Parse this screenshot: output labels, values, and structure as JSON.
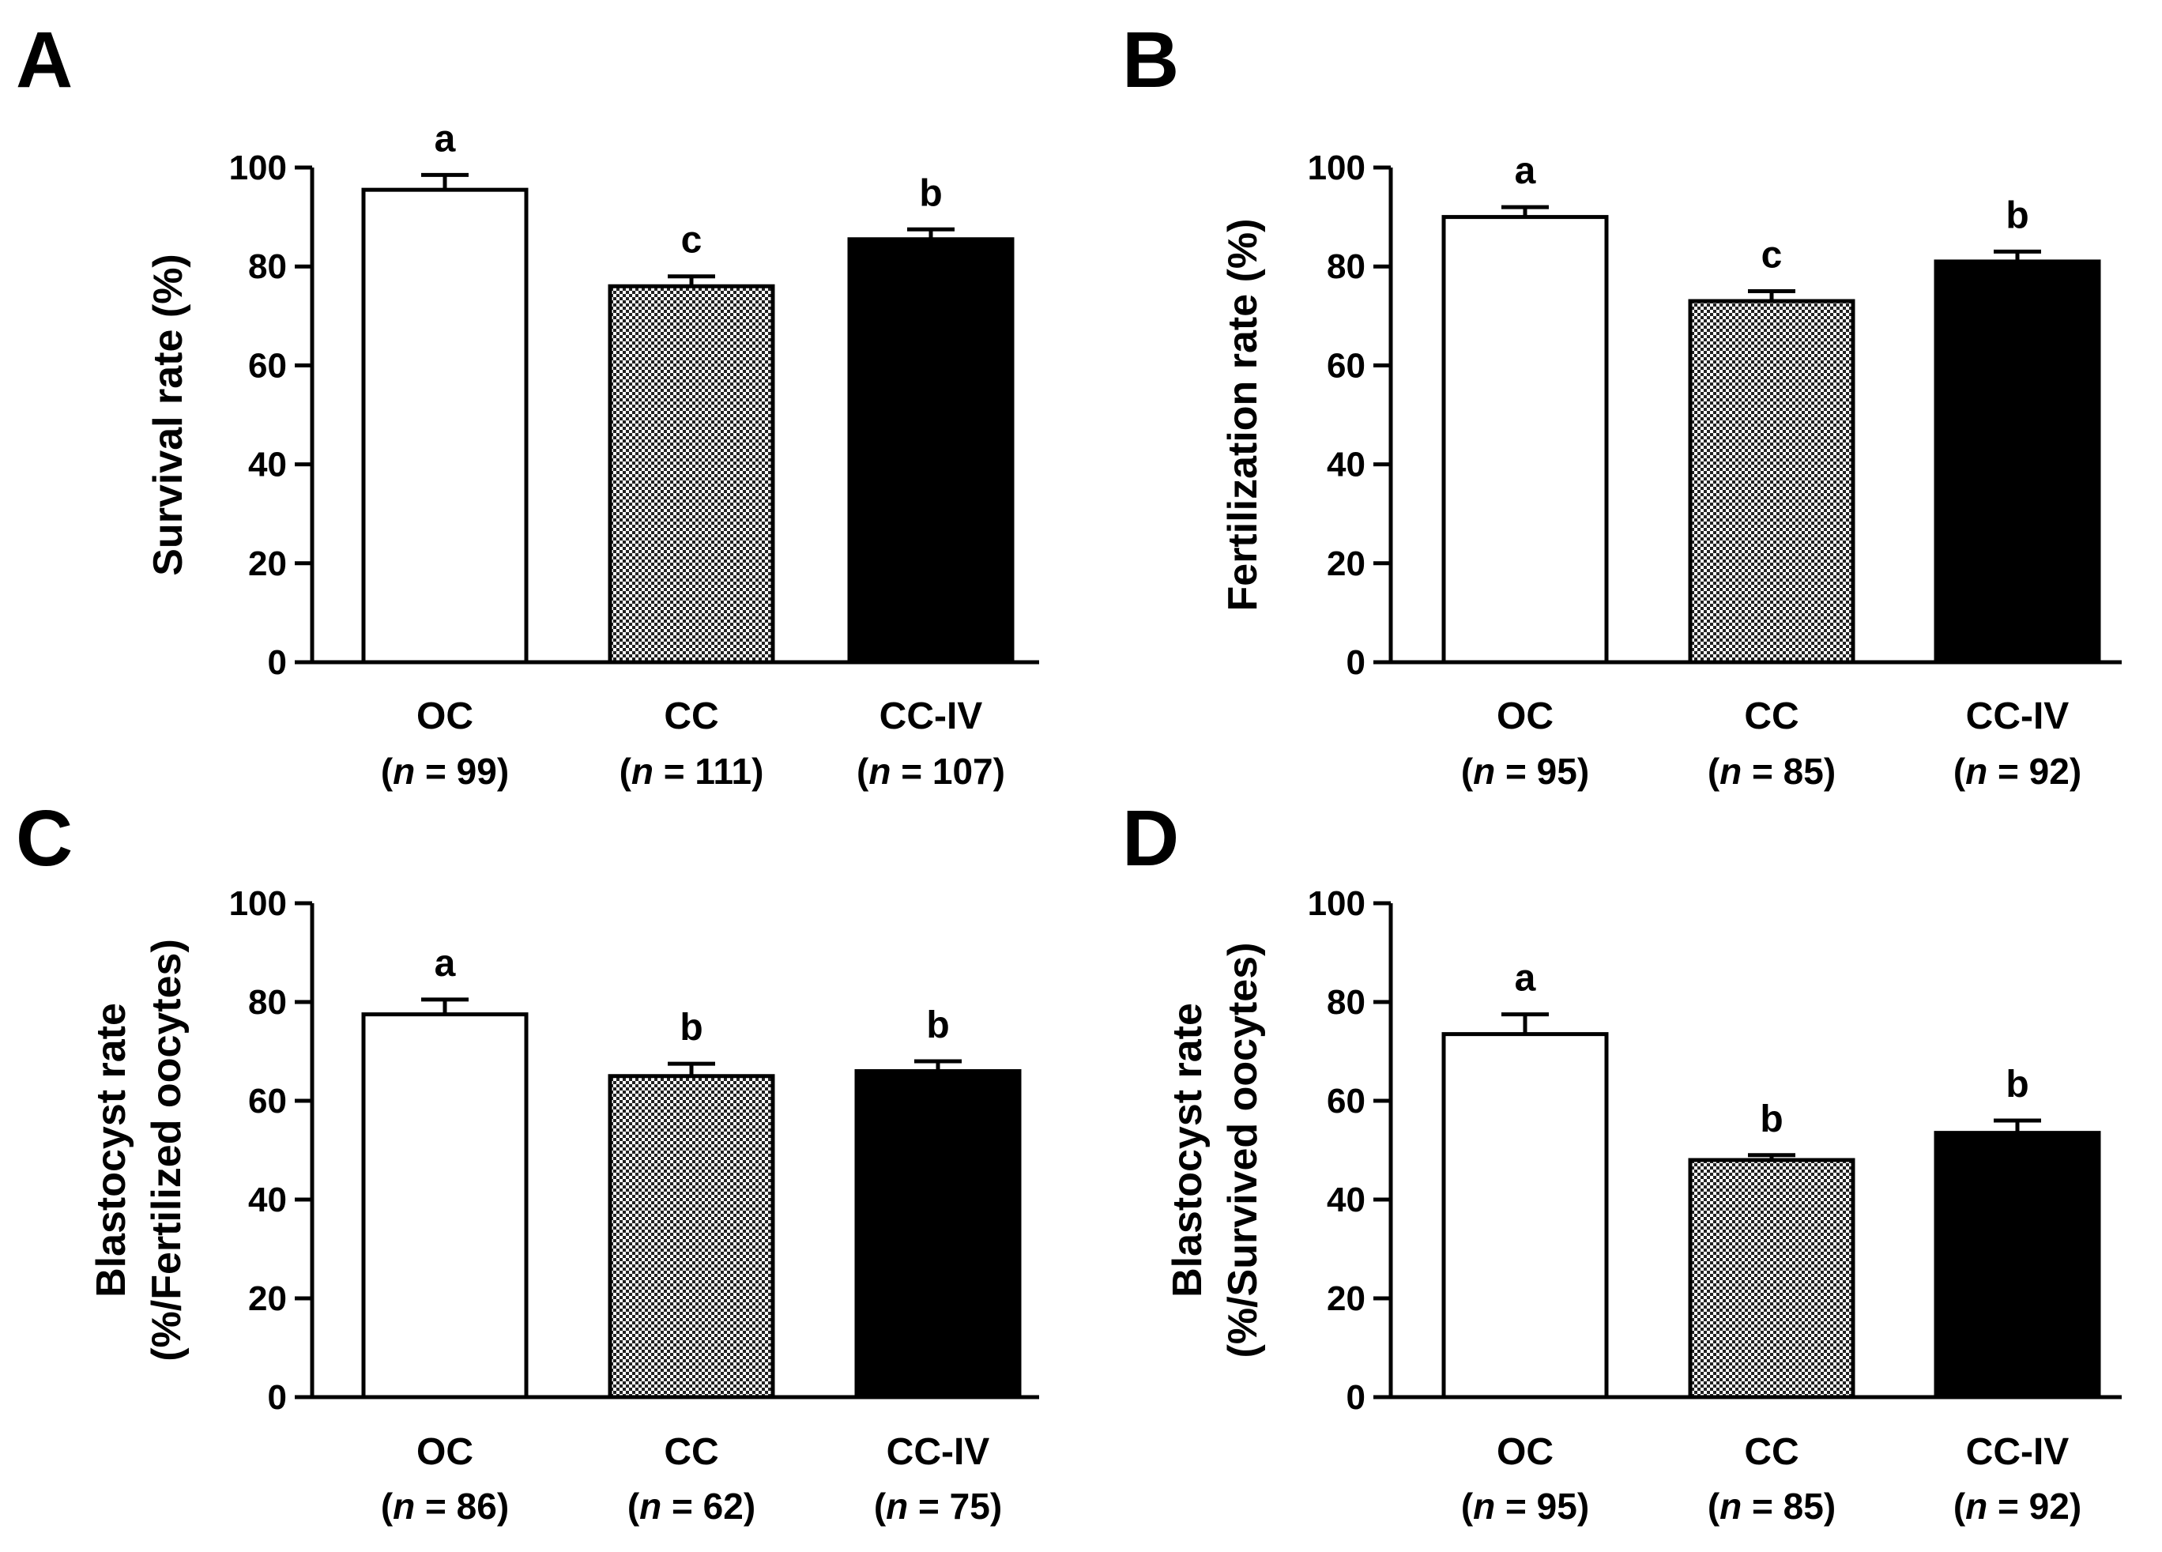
{
  "colors": {
    "OC": "#ffffff",
    "CC": "checker",
    "CC-IV": "#000000",
    "axis": "#000000"
  },
  "chart_data": [
    {
      "panel": "A",
      "type": "bar",
      "ylabel": "Survival rate (%)",
      "ylabel2": "",
      "ylim": [
        0,
        100
      ],
      "yticks": [
        "0",
        "20",
        "40",
        "60",
        "80",
        "100"
      ],
      "categories": [
        "OC",
        "CC",
        "CC-IV"
      ],
      "n_labels": [
        {
          "pre": "(",
          "n": "n",
          "post": " = 99)"
        },
        {
          "pre": "(",
          "n": "n",
          "post": " = 111)"
        },
        {
          "pre": "(",
          "n": "n",
          "post": " = 107)"
        }
      ],
      "values": [
        95.5,
        76,
        85.5
      ],
      "errors": [
        3,
        2,
        2
      ],
      "sig": [
        "a",
        "c",
        "b"
      ]
    },
    {
      "panel": "B",
      "type": "bar",
      "ylabel": "Fertilization rate (%)",
      "ylabel2": "",
      "ylim": [
        0,
        100
      ],
      "yticks": [
        "0",
        "20",
        "40",
        "60",
        "80",
        "100"
      ],
      "categories": [
        "OC",
        "CC",
        "CC-IV"
      ],
      "n_labels": [
        {
          "pre": "(",
          "n": "n",
          "post": " = 95)"
        },
        {
          "pre": "(",
          "n": "n",
          "post": " = 85)"
        },
        {
          "pre": "(",
          "n": "n",
          "post": " = 92)"
        }
      ],
      "values": [
        90,
        73,
        81
      ],
      "errors": [
        2,
        2,
        2
      ],
      "sig": [
        "a",
        "c",
        "b"
      ]
    },
    {
      "panel": "C",
      "type": "bar",
      "ylabel": "Blastocyst rate",
      "ylabel2": "(%/Fertilized oocytes)",
      "ylim": [
        0,
        100
      ],
      "yticks": [
        "0",
        "20",
        "40",
        "60",
        "80",
        "100"
      ],
      "categories": [
        "OC",
        "CC",
        "CC-IV"
      ],
      "n_labels": [
        {
          "pre": "(",
          "n": "n",
          "post": " = 86)"
        },
        {
          "pre": "(",
          "n": "n",
          "post": " = 62)"
        },
        {
          "pre": "(",
          "n": "n",
          "post": " = 75)"
        }
      ],
      "values": [
        77.5,
        65,
        66
      ],
      "errors": [
        3,
        2.5,
        2
      ],
      "sig": [
        "a",
        "b",
        "b"
      ]
    },
    {
      "panel": "D",
      "type": "bar",
      "ylabel": "Blastocyst rate",
      "ylabel2": "(%/Survived oocytes)",
      "ylim": [
        0,
        100
      ],
      "yticks": [
        "0",
        "20",
        "40",
        "60",
        "80",
        "100"
      ],
      "categories": [
        "OC",
        "CC",
        "CC-IV"
      ],
      "n_labels": [
        {
          "pre": "(",
          "n": "n",
          "post": " = 95)"
        },
        {
          "pre": "(",
          "n": "n",
          "post": " = 85)"
        },
        {
          "pre": "(",
          "n": "n",
          "post": " = 92)"
        }
      ],
      "values": [
        73.5,
        48,
        53.5
      ],
      "errors": [
        4,
        1,
        2.5
      ],
      "sig": [
        "a",
        "b",
        "b"
      ]
    }
  ]
}
